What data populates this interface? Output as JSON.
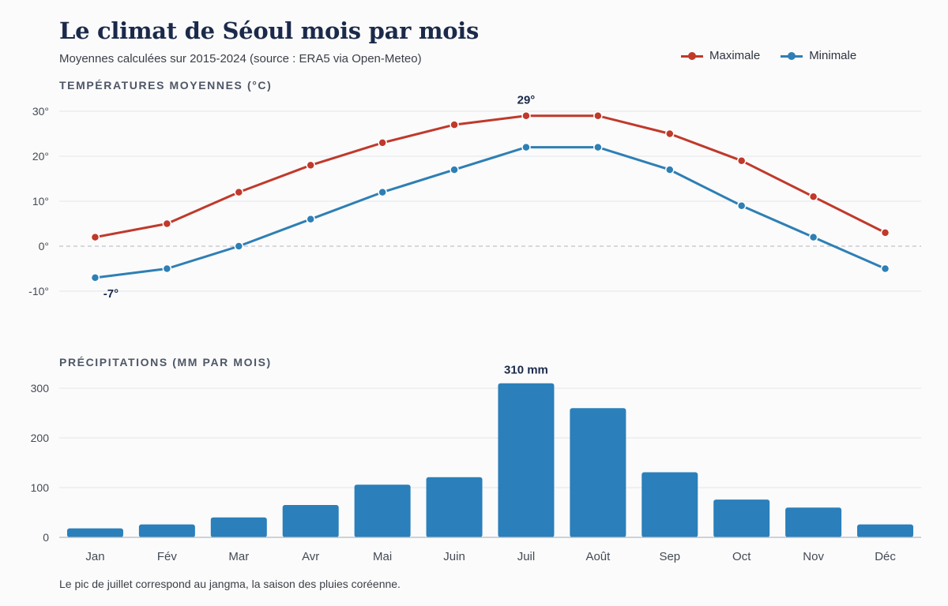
{
  "header": {
    "title": "Le climat de Séoul mois par mois",
    "subtitle": "Moyennes calculées sur 2015-2024 (source : ERA5 via Open-Meteo)"
  },
  "legend": {
    "max_label": "Maximale",
    "min_label": "Minimale"
  },
  "colors": {
    "max": "#c0392b",
    "min": "#2e7fb5",
    "bar": "#2b7fba",
    "grid": "#e3e6ea",
    "zero": "#bfc4ca"
  },
  "footnote": "Le pic de juillet correspond au jangma, la saison des pluies coréenne.",
  "chart_data": [
    {
      "type": "line",
      "title": "TEMPÉRATURES MOYENNES (°C)",
      "categories": [
        "Jan",
        "Fév",
        "Mar",
        "Avr",
        "Mai",
        "Juin",
        "Juil",
        "Août",
        "Sep",
        "Oct",
        "Nov",
        "Déc"
      ],
      "series": [
        {
          "name": "Maximale",
          "values": [
            2,
            5,
            12,
            18,
            23,
            27,
            29,
            29,
            25,
            19,
            11,
            3
          ]
        },
        {
          "name": "Minimale",
          "values": [
            -7,
            -5,
            0,
            6,
            12,
            17,
            22,
            22,
            17,
            9,
            2,
            -5
          ]
        }
      ],
      "yticks": [
        30,
        20,
        10,
        0,
        -10
      ],
      "ytick_labels": [
        "30°",
        "20°",
        "10°",
        "0°",
        "-10°"
      ],
      "ylim": [
        -10,
        30
      ],
      "grid": true,
      "zero_line": "dashed",
      "legend": "top-right",
      "annotations": [
        {
          "series": "Maximale",
          "category": "Juil",
          "text": "29°"
        },
        {
          "series": "Minimale",
          "category": "Jan",
          "text": "-7°"
        }
      ]
    },
    {
      "type": "bar",
      "title": "PRÉCIPITATIONS (MM PAR MOIS)",
      "categories": [
        "Jan",
        "Fév",
        "Mar",
        "Avr",
        "Mai",
        "Juin",
        "Juil",
        "Août",
        "Sep",
        "Oct",
        "Nov",
        "Déc"
      ],
      "values": [
        18,
        26,
        40,
        65,
        106,
        121,
        310,
        260,
        131,
        76,
        60,
        26
      ],
      "yticks": [
        300,
        200,
        100,
        0
      ],
      "ytick_labels": [
        "300",
        "200",
        "100",
        "0"
      ],
      "ylim": [
        0,
        300
      ],
      "grid": true,
      "annotations": [
        {
          "category": "Juil",
          "text": "310 mm"
        }
      ]
    }
  ]
}
